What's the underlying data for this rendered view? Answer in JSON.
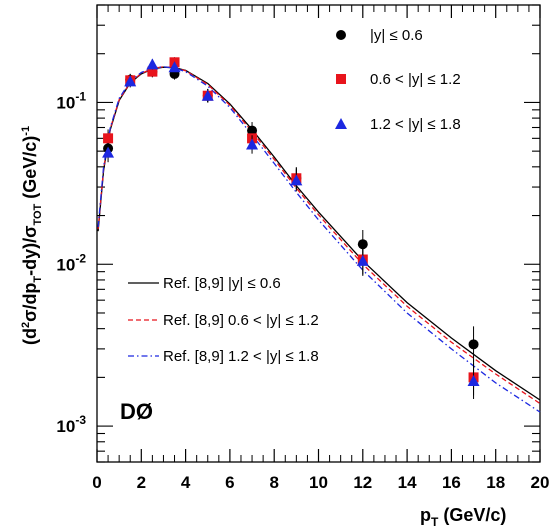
{
  "chart_data": {
    "type": "scatter",
    "y_scale": "log",
    "xlim": [
      0,
      20
    ],
    "ylim": [
      0.0006,
      0.4
    ],
    "xticks": [
      0,
      2,
      4,
      6,
      8,
      10,
      12,
      14,
      16,
      18,
      20
    ],
    "yticks": [
      {
        "value": 0.1,
        "base": "10",
        "exp": "-1"
      },
      {
        "value": 0.01,
        "base": "10",
        "exp": "-2"
      },
      {
        "value": 0.001,
        "base": "10",
        "exp": "-3"
      }
    ],
    "xlabel": {
      "main": "p",
      "sub": "T",
      "rest": " (GeV/c)"
    },
    "ylabel": "(d²σ/dp_T dy)/σ_TOT (GeV/c)⁻¹",
    "experiment_label": "DØ",
    "series": [
      {
        "name": "|y| ≤ 0.6",
        "marker": "circle",
        "color": "#000000",
        "x": [
          0.5,
          1.5,
          2.5,
          3.5,
          5.0,
          7.0,
          9.0,
          12.0,
          17.0
        ],
        "y": [
          0.052,
          0.138,
          0.155,
          0.15,
          0.11,
          0.067,
          0.034,
          0.0133,
          0.0032
        ]
      },
      {
        "name": "0.6 < |y| ≤ 1.2",
        "marker": "square",
        "color": "#e8141c",
        "x": [
          0.5,
          1.5,
          2.5,
          3.5,
          5.0,
          7.0,
          9.0,
          12.0,
          17.0
        ],
        "y": [
          0.06,
          0.137,
          0.155,
          0.177,
          0.11,
          0.06,
          0.034,
          0.0107,
          0.002
        ]
      },
      {
        "name": "1.2 < |y| ≤ 1.8",
        "marker": "triangle",
        "color": "#1c28e0",
        "x": [
          0.5,
          1.5,
          2.5,
          3.5,
          5.0,
          7.0,
          9.0,
          12.0,
          17.0
        ],
        "y": [
          0.049,
          0.135,
          0.172,
          0.165,
          0.11,
          0.055,
          0.033,
          0.0105,
          0.0019
        ]
      }
    ],
    "curves": [
      {
        "name": "Ref. [8,9] |y| ≤ 0.6",
        "color": "#000000",
        "dash": "solid",
        "x": [
          0.05,
          0.3,
          0.6,
          1.0,
          1.5,
          2.0,
          2.5,
          3.0,
          3.5,
          4.0,
          5.0,
          6.0,
          7.0,
          8.0,
          9.0,
          10.0,
          12.0,
          14.0,
          16.0,
          18.0,
          20.0
        ],
        "y": [
          0.016,
          0.038,
          0.068,
          0.103,
          0.132,
          0.15,
          0.161,
          0.165,
          0.164,
          0.158,
          0.131,
          0.098,
          0.068,
          0.046,
          0.0305,
          0.021,
          0.0105,
          0.0058,
          0.0035,
          0.0022,
          0.00145
        ]
      },
      {
        "name": "Ref. [8,9] 0.6 < |y| ≤ 1.2",
        "color": "#e8141c",
        "dash": "dashed",
        "x": [
          0.05,
          0.3,
          0.6,
          1.0,
          1.5,
          2.0,
          2.5,
          3.0,
          3.5,
          4.0,
          5.0,
          6.0,
          7.0,
          8.0,
          9.0,
          10.0,
          12.0,
          14.0,
          16.0,
          18.0,
          20.0
        ],
        "y": [
          0.0165,
          0.039,
          0.069,
          0.104,
          0.133,
          0.151,
          0.162,
          0.166,
          0.164,
          0.157,
          0.129,
          0.096,
          0.066,
          0.0445,
          0.0295,
          0.0202,
          0.01,
          0.0055,
          0.0033,
          0.0021,
          0.00138
        ]
      },
      {
        "name": "Ref. [8,9] 1.2 < |y| ≤ 1.8",
        "color": "#1c28e0",
        "dash": "dashdot",
        "x": [
          0.05,
          0.3,
          0.6,
          1.0,
          1.5,
          2.0,
          2.5,
          3.0,
          3.5,
          4.0,
          5.0,
          6.0,
          7.0,
          8.0,
          9.0,
          10.0,
          12.0,
          14.0,
          16.0,
          18.0,
          20.0
        ],
        "y": [
          0.017,
          0.04,
          0.07,
          0.106,
          0.135,
          0.153,
          0.163,
          0.166,
          0.163,
          0.155,
          0.126,
          0.093,
          0.063,
          0.042,
          0.0278,
          0.0188,
          0.0092,
          0.005,
          0.003,
          0.00185,
          0.00122
        ]
      }
    ],
    "grid": false,
    "legend_placement": [
      "top-right",
      "bottom-left"
    ]
  }
}
